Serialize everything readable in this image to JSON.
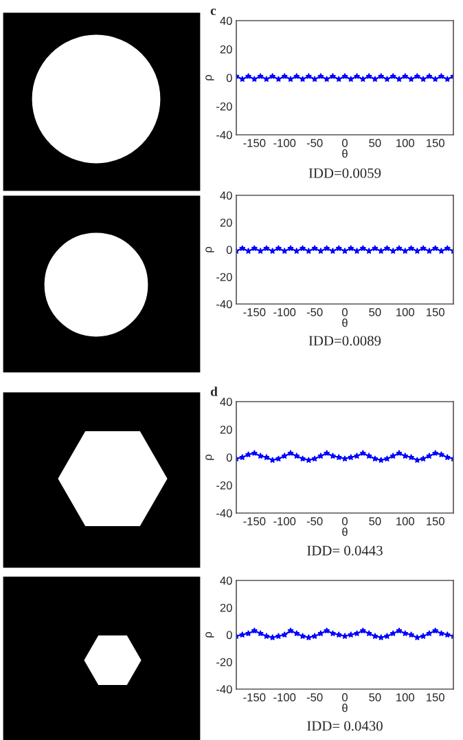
{
  "chart_data": [
    {
      "type": "line",
      "title": "c",
      "xlabel": "θ",
      "ylabel": "ρ",
      "annotations": [
        "IDD=0.0059"
      ],
      "xlim": [
        -180,
        180
      ],
      "ylim": [
        -40,
        40
      ],
      "xticks": [
        -150,
        -100,
        -50,
        0,
        50,
        100,
        150
      ],
      "yticks": [
        -40,
        -20,
        0,
        20,
        40
      ],
      "grid": false,
      "marker": "star",
      "line_style": "solid",
      "series": [
        {
          "color": "#0000ff",
          "x": [
            -180,
            -170,
            -160,
            -150,
            -140,
            -130,
            -120,
            -110,
            -100,
            -90,
            -80,
            -70,
            -60,
            -50,
            -40,
            -30,
            -20,
            -10,
            0,
            10,
            20,
            30,
            40,
            50,
            60,
            70,
            80,
            90,
            100,
            110,
            120,
            130,
            140,
            150,
            160,
            170,
            180
          ],
          "values": [
            1,
            -1,
            1,
            -1,
            1,
            -1,
            1,
            -1,
            1,
            -1,
            1,
            -1,
            1,
            -1,
            1,
            -1,
            1,
            -1,
            1,
            -1,
            1,
            -1,
            1,
            -1,
            1,
            -1,
            1,
            -1,
            1,
            -1,
            1,
            -1,
            1,
            -1,
            1,
            -1,
            1
          ]
        }
      ]
    },
    {
      "type": "line",
      "xlabel": "θ",
      "ylabel": "ρ",
      "annotations": [
        "IDD=0.0089"
      ],
      "xlim": [
        -180,
        180
      ],
      "ylim": [
        -40,
        40
      ],
      "xticks": [
        -150,
        -100,
        -50,
        0,
        50,
        100,
        150
      ],
      "yticks": [
        -40,
        -20,
        0,
        20,
        40
      ],
      "grid": false,
      "marker": "star",
      "line_style": "solid",
      "series": [
        {
          "color": "#0000ff",
          "x": [
            -180,
            -170,
            -160,
            -150,
            -140,
            -130,
            -120,
            -110,
            -100,
            -90,
            -80,
            -70,
            -60,
            -50,
            -40,
            -30,
            -20,
            -10,
            0,
            10,
            20,
            30,
            40,
            50,
            60,
            70,
            80,
            90,
            100,
            110,
            120,
            130,
            140,
            150,
            160,
            170,
            180
          ],
          "values": [
            -1,
            1,
            -1,
            1,
            -1,
            1,
            -1,
            1,
            -1,
            1,
            -1,
            1,
            -1,
            1,
            -1,
            1,
            -1,
            1,
            -1,
            1,
            -1,
            1,
            -1,
            1,
            -1,
            1,
            -1,
            1,
            -1,
            1,
            -1,
            1,
            -1,
            1,
            -1,
            1,
            -1
          ]
        }
      ]
    },
    {
      "type": "line",
      "title": "d",
      "xlabel": "θ",
      "ylabel": "ρ",
      "annotations": [
        "IDD= 0.0443"
      ],
      "xlim": [
        -180,
        180
      ],
      "ylim": [
        -40,
        40
      ],
      "xticks": [
        -150,
        -100,
        -50,
        0,
        50,
        100,
        150
      ],
      "yticks": [
        -40,
        -20,
        0,
        20,
        40
      ],
      "grid": false,
      "marker": "star",
      "line_style": "solid",
      "series": [
        {
          "color": "#0000ff",
          "x": [
            -180,
            -170,
            -160,
            -150,
            -140,
            -130,
            -120,
            -110,
            -100,
            -90,
            -80,
            -70,
            -60,
            -50,
            -40,
            -30,
            -20,
            -10,
            0,
            10,
            20,
            30,
            40,
            50,
            60,
            70,
            80,
            90,
            100,
            110,
            120,
            130,
            140,
            150,
            160,
            170,
            180
          ],
          "values": [
            -1,
            0,
            2,
            3,
            1,
            0,
            -2,
            -1,
            1,
            3,
            1,
            -1,
            -2,
            -1,
            1,
            3,
            1,
            0,
            -1,
            0,
            1,
            3,
            1,
            -1,
            -2,
            -1,
            1,
            3,
            1,
            0,
            -2,
            -1,
            1,
            3,
            2,
            0,
            -1
          ]
        }
      ]
    },
    {
      "type": "line",
      "xlabel": "θ",
      "ylabel": "ρ",
      "annotations": [
        "IDD= 0.0430"
      ],
      "xlim": [
        -180,
        180
      ],
      "ylim": [
        -40,
        40
      ],
      "xticks": [
        -150,
        -100,
        -50,
        0,
        50,
        100,
        150
      ],
      "yticks": [
        -40,
        -20,
        0,
        20,
        40
      ],
      "grid": false,
      "marker": "star",
      "line_style": "solid",
      "series": [
        {
          "color": "#0000ff",
          "x": [
            -180,
            -170,
            -160,
            -150,
            -140,
            -130,
            -120,
            -110,
            -100,
            -90,
            -80,
            -70,
            -60,
            -50,
            -40,
            -30,
            -20,
            -10,
            0,
            10,
            20,
            30,
            40,
            50,
            60,
            70,
            80,
            90,
            100,
            110,
            120,
            130,
            140,
            150,
            160,
            170,
            180
          ],
          "values": [
            -1,
            0,
            1,
            3,
            1,
            -1,
            -2,
            -1,
            0,
            3,
            1,
            -1,
            -2,
            -1,
            1,
            3,
            1,
            0,
            -1,
            0,
            1,
            3,
            1,
            -1,
            -2,
            -1,
            1,
            3,
            1,
            0,
            -2,
            -1,
            1,
            3,
            1,
            0,
            -1
          ]
        }
      ]
    }
  ]
}
